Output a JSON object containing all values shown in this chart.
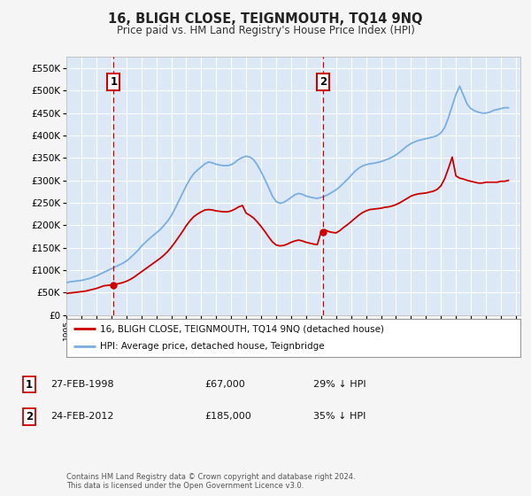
{
  "title": "16, BLIGH CLOSE, TEIGNMOUTH, TQ14 9NQ",
  "subtitle": "Price paid vs. HM Land Registry's House Price Index (HPI)",
  "ylim": [
    0,
    575000
  ],
  "yticks": [
    0,
    50000,
    100000,
    150000,
    200000,
    250000,
    300000,
    350000,
    400000,
    450000,
    500000,
    550000
  ],
  "xlim_start": 1995.0,
  "xlim_end": 2025.3,
  "plot_bg_color": "#dce8f5",
  "fig_bg_color": "#f5f5f5",
  "grid_color": "#ffffff",
  "sale1_x": 1998.15,
  "sale1_y": 67000,
  "sale2_x": 2012.15,
  "sale2_y": 185000,
  "red_line_color": "#cc0000",
  "blue_line_color": "#7aade0",
  "legend_label_red": "16, BLIGH CLOSE, TEIGNMOUTH, TQ14 9NQ (detached house)",
  "legend_label_blue": "HPI: Average price, detached house, Teignbridge",
  "sale1_date": "27-FEB-1998",
  "sale1_price": "£67,000",
  "sale1_hpi": "29% ↓ HPI",
  "sale2_date": "24-FEB-2012",
  "sale2_price": "£185,000",
  "sale2_hpi": "35% ↓ HPI",
  "footnote": "Contains HM Land Registry data © Crown copyright and database right 2024.\nThis data is licensed under the Open Government Licence v3.0.",
  "hpi_years": [
    1995.0,
    1995.25,
    1995.5,
    1995.75,
    1996.0,
    1996.25,
    1996.5,
    1996.75,
    1997.0,
    1997.25,
    1997.5,
    1997.75,
    1998.0,
    1998.25,
    1998.5,
    1998.75,
    1999.0,
    1999.25,
    1999.5,
    1999.75,
    2000.0,
    2000.25,
    2000.5,
    2000.75,
    2001.0,
    2001.25,
    2001.5,
    2001.75,
    2002.0,
    2002.25,
    2002.5,
    2002.75,
    2003.0,
    2003.25,
    2003.5,
    2003.75,
    2004.0,
    2004.25,
    2004.5,
    2004.75,
    2005.0,
    2005.25,
    2005.5,
    2005.75,
    2006.0,
    2006.25,
    2006.5,
    2006.75,
    2007.0,
    2007.25,
    2007.5,
    2007.75,
    2008.0,
    2008.25,
    2008.5,
    2008.75,
    2009.0,
    2009.25,
    2009.5,
    2009.75,
    2010.0,
    2010.25,
    2010.5,
    2010.75,
    2011.0,
    2011.25,
    2011.5,
    2011.75,
    2012.0,
    2012.25,
    2012.5,
    2012.75,
    2013.0,
    2013.25,
    2013.5,
    2013.75,
    2014.0,
    2014.25,
    2014.5,
    2014.75,
    2015.0,
    2015.25,
    2015.5,
    2015.75,
    2016.0,
    2016.25,
    2016.5,
    2016.75,
    2017.0,
    2017.25,
    2017.5,
    2017.75,
    2018.0,
    2018.25,
    2018.5,
    2018.75,
    2019.0,
    2019.25,
    2019.5,
    2019.75,
    2020.0,
    2020.25,
    2020.5,
    2020.75,
    2021.0,
    2021.25,
    2021.5,
    2021.75,
    2022.0,
    2022.25,
    2022.5,
    2022.75,
    2023.0,
    2023.25,
    2023.5,
    2023.75,
    2024.0,
    2024.25,
    2024.5
  ],
  "hpi_values": [
    72000,
    74000,
    75000,
    76000,
    77000,
    79000,
    81000,
    84000,
    87000,
    91000,
    95000,
    99000,
    103000,
    107000,
    111000,
    115000,
    120000,
    127000,
    135000,
    143000,
    153000,
    161000,
    169000,
    176000,
    183000,
    190000,
    199000,
    209000,
    221000,
    237000,
    254000,
    271000,
    288000,
    303000,
    315000,
    323000,
    330000,
    337000,
    341000,
    339000,
    336000,
    334000,
    333000,
    333000,
    335000,
    340000,
    347000,
    351000,
    354000,
    352000,
    346000,
    334000,
    319000,
    302000,
    284000,
    265000,
    253000,
    249000,
    251000,
    256000,
    262000,
    268000,
    271000,
    269000,
    265000,
    263000,
    261000,
    260000,
    262000,
    265000,
    269000,
    274000,
    279000,
    286000,
    294000,
    302000,
    311000,
    320000,
    327000,
    332000,
    335000,
    337000,
    338000,
    340000,
    342000,
    345000,
    348000,
    352000,
    357000,
    363000,
    370000,
    377000,
    382000,
    386000,
    389000,
    391000,
    393000,
    395000,
    397000,
    400000,
    406000,
    418000,
    440000,
    466000,
    492000,
    510000,
    490000,
    470000,
    460000,
    455000,
    452000,
    450000,
    450000,
    452000,
    456000,
    458000,
    460000,
    462000,
    462000
  ],
  "red_years": [
    1995.0,
    1995.25,
    1995.5,
    1995.75,
    1996.0,
    1996.25,
    1996.5,
    1996.75,
    1997.0,
    1997.25,
    1997.5,
    1997.75,
    1998.0,
    1998.25,
    1998.5,
    1998.75,
    1999.0,
    1999.25,
    1999.5,
    1999.75,
    2000.0,
    2000.25,
    2000.5,
    2000.75,
    2001.0,
    2001.25,
    2001.5,
    2001.75,
    2002.0,
    2002.25,
    2002.5,
    2002.75,
    2003.0,
    2003.25,
    2003.5,
    2003.75,
    2004.0,
    2004.25,
    2004.5,
    2004.75,
    2005.0,
    2005.25,
    2005.5,
    2005.75,
    2006.0,
    2006.25,
    2006.5,
    2006.75,
    2007.0,
    2007.25,
    2007.5,
    2007.75,
    2008.0,
    2008.25,
    2008.5,
    2008.75,
    2009.0,
    2009.25,
    2009.5,
    2009.75,
    2010.0,
    2010.25,
    2010.5,
    2010.75,
    2011.0,
    2011.25,
    2011.5,
    2011.75,
    2012.0,
    2012.25,
    2012.5,
    2012.75,
    2013.0,
    2013.25,
    2013.5,
    2013.75,
    2014.0,
    2014.25,
    2014.5,
    2014.75,
    2015.0,
    2015.25,
    2015.5,
    2015.75,
    2016.0,
    2016.25,
    2016.5,
    2016.75,
    2017.0,
    2017.25,
    2017.5,
    2017.75,
    2018.0,
    2018.25,
    2018.5,
    2018.75,
    2019.0,
    2019.25,
    2019.5,
    2019.75,
    2020.0,
    2020.25,
    2020.5,
    2020.75,
    2021.0,
    2021.25,
    2021.5,
    2021.75,
    2022.0,
    2022.25,
    2022.5,
    2022.75,
    2023.0,
    2023.25,
    2023.5,
    2023.75,
    2024.0,
    2024.25,
    2024.5
  ],
  "red_values": [
    48000,
    49000,
    50000,
    51000,
    52000,
    53000,
    55000,
    57000,
    59000,
    62000,
    65000,
    66000,
    67000,
    68000,
    70000,
    72000,
    75000,
    79000,
    84000,
    90000,
    96000,
    102000,
    108000,
    114000,
    120000,
    126000,
    133000,
    141000,
    151000,
    162000,
    174000,
    186000,
    199000,
    210000,
    219000,
    225000,
    230000,
    234000,
    235000,
    234000,
    232000,
    231000,
    230000,
    230000,
    232000,
    236000,
    241000,
    244000,
    227000,
    222000,
    216000,
    207000,
    197000,
    186000,
    174000,
    163000,
    156000,
    154000,
    155000,
    158000,
    162000,
    165000,
    167000,
    165000,
    162000,
    160000,
    158000,
    157000,
    185000,
    190000,
    186000,
    184000,
    183000,
    188000,
    195000,
    201000,
    208000,
    215000,
    222000,
    228000,
    232000,
    235000,
    236000,
    237000,
    238000,
    240000,
    241000,
    243000,
    246000,
    250000,
    255000,
    260000,
    265000,
    268000,
    270000,
    271000,
    272000,
    274000,
    276000,
    280000,
    288000,
    304000,
    327000,
    352000,
    310000,
    305000,
    303000,
    300000,
    298000,
    296000,
    294000,
    294000,
    296000,
    296000,
    296000,
    296000,
    298000,
    298000,
    300000
  ]
}
